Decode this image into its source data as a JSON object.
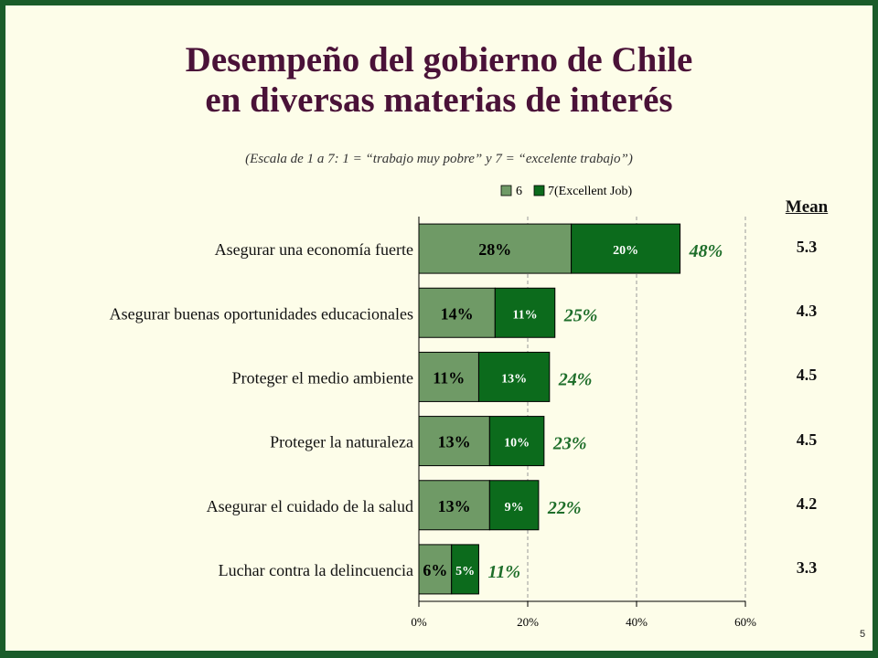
{
  "title_line1": "Desempeño del gobierno de Chile",
  "title_line2": "en diversas materias de interés",
  "subtitle": "(Escala de 1 a 7: 1 = “trabajo muy pobre” y 7 = “excelente trabajo”)",
  "mean_header": "Mean",
  "page_number": "5",
  "colors": {
    "series_6": "#6f9a66",
    "series_7": "#0c6b1c",
    "total_label": "#1e6e2a",
    "title": "#4a1238"
  },
  "chart_data": {
    "type": "bar",
    "orientation": "horizontal",
    "stacked": true,
    "categories": [
      "Asegurar una economía fuerte",
      "Asegurar buenas oportunidades educacionales",
      "Proteger el medio ambiente",
      "Proteger la naturaleza",
      "Asegurar el cuidado de la salud",
      "Luchar contra la delincuencia"
    ],
    "series": [
      {
        "name": "6",
        "values": [
          28,
          14,
          11,
          13,
          13,
          6
        ]
      },
      {
        "name": "7(Excellent Job)",
        "values": [
          20,
          11,
          13,
          10,
          9,
          5
        ]
      }
    ],
    "totals": [
      48,
      25,
      24,
      23,
      22,
      11
    ],
    "means": [
      "5.3",
      "4.3",
      "4.5",
      "4.5",
      "4.2",
      "3.3"
    ],
    "xlim": [
      0,
      60
    ],
    "xticks": [
      "0%",
      "20%",
      "40%",
      "60%"
    ],
    "value_suffix": "%",
    "grid": "vertical dashed",
    "legend_position": "top"
  }
}
